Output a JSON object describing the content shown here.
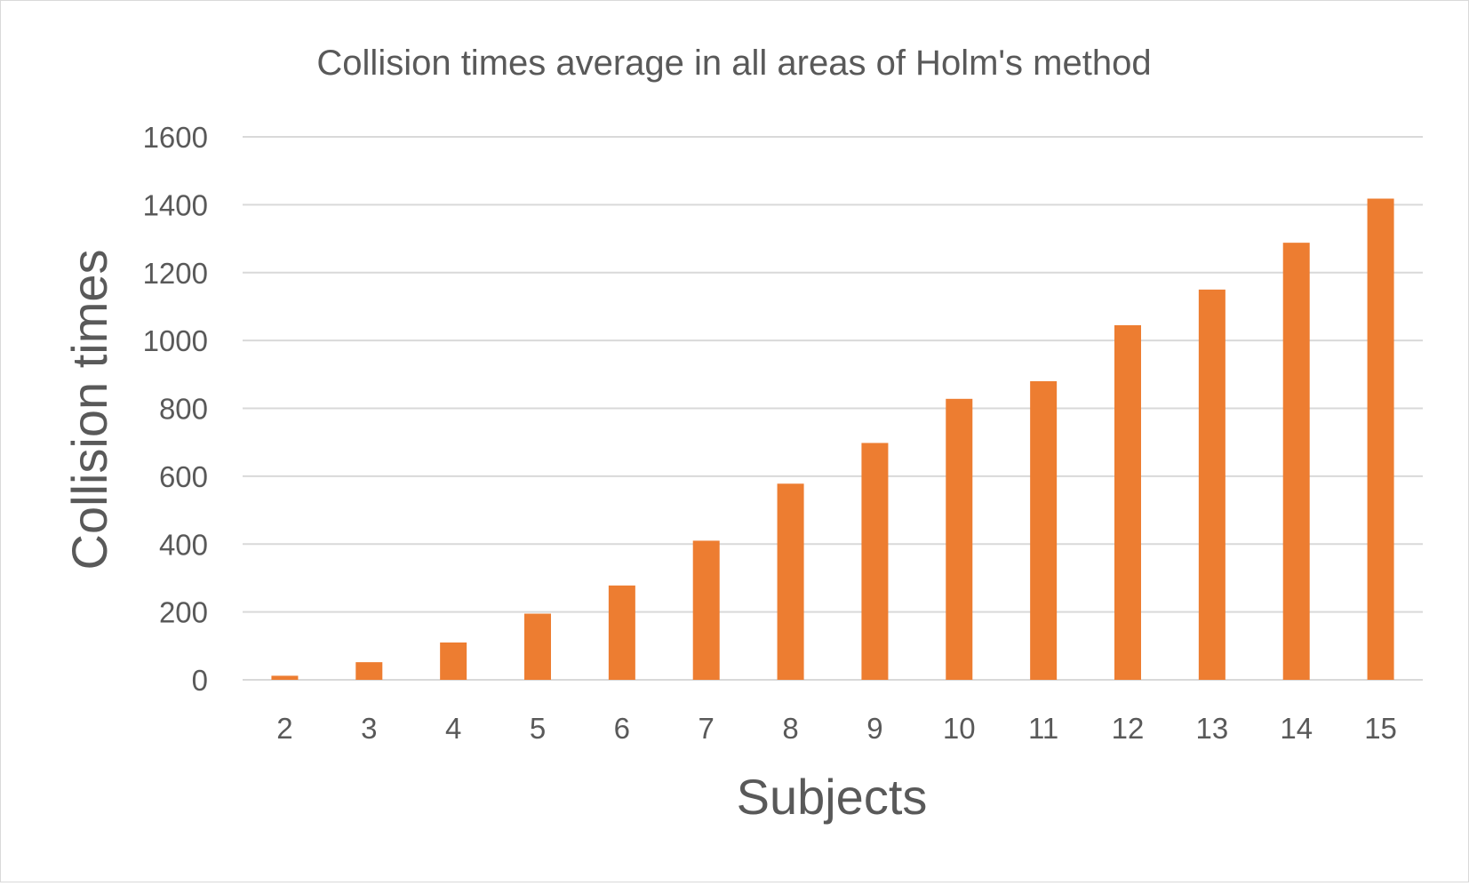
{
  "colors": {
    "bar": "#ED7D31",
    "gridline": "#D9D9D9",
    "text": "#595959",
    "background": "#FFFFFF",
    "border": "#D9D9D9"
  },
  "chart_data": {
    "type": "bar",
    "title": "Collision times average in all areas of Holm's method",
    "xlabel": "Subjects",
    "ylabel": "Collision times",
    "categories": [
      "2",
      "3",
      "4",
      "5",
      "6",
      "7",
      "8",
      "9",
      "10",
      "11",
      "12",
      "13",
      "14",
      "15"
    ],
    "series": [
      {
        "values": [
          12,
          52,
          110,
          195,
          278,
          410,
          578,
          698,
          828,
          880,
          1045,
          1150,
          1288,
          1418
        ]
      }
    ],
    "ylim": [
      0,
      1600
    ],
    "yticks": [
      0,
      200,
      400,
      600,
      800,
      1000,
      1200,
      1400,
      1600
    ],
    "grid": true,
    "legend": "none"
  }
}
